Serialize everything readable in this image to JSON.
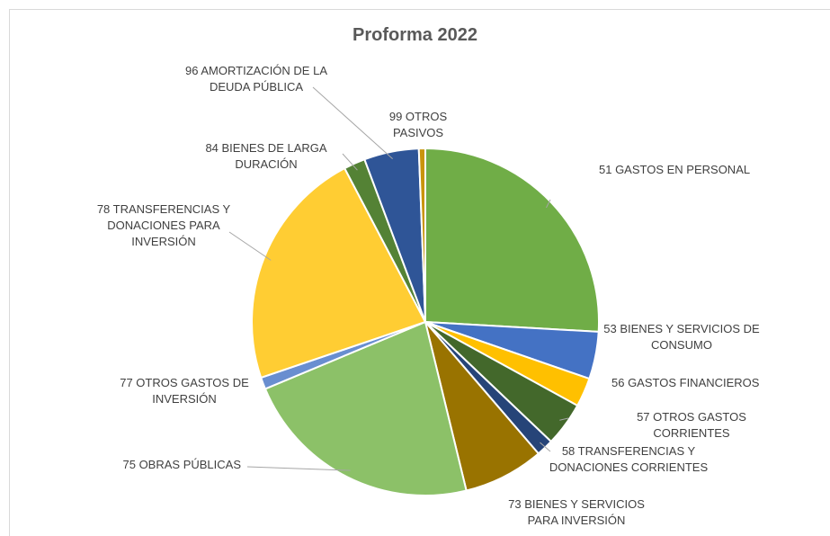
{
  "chart_data": {
    "type": "pie",
    "title": "Proforma 2022",
    "categories": [
      "51 GASTOS EN PERSONAL",
      "53 BIENES Y SERVICIOS DE CONSUMO",
      "56 GASTOS FINANCIEROS",
      "57 OTROS GASTOS CORRIENTES",
      "58 TRANSFERENCIAS Y DONACIONES CORRIENTES",
      "73 BIENES Y SERVICIOS PARA INVERSIÓN",
      "75 OBRAS PÚBLICAS",
      "77 OTROS GASTOS DE INVERSIÓN",
      "78 TRANSFERENCIAS Y DONACIONES PARA INVERSIÓN",
      "84 BIENES DE LARGA DURACIÓN",
      "96 AMORTIZACIÓN DE LA DEUDA PÚBLICA",
      "99 OTROS PASIVOS"
    ],
    "values": [
      25.9,
      4.4,
      2.7,
      4.1,
      1.6,
      7.5,
      22.5,
      1.1,
      22.5,
      2.0,
      5.1,
      0.6
    ],
    "colors": [
      "#70ad47",
      "#4472c4",
      "#ffc000",
      "#43682b",
      "#264478",
      "#997300",
      "#8cc168",
      "#698ed0",
      "#ffcd33",
      "#548235",
      "#2f5597",
      "#c9940b"
    ]
  }
}
